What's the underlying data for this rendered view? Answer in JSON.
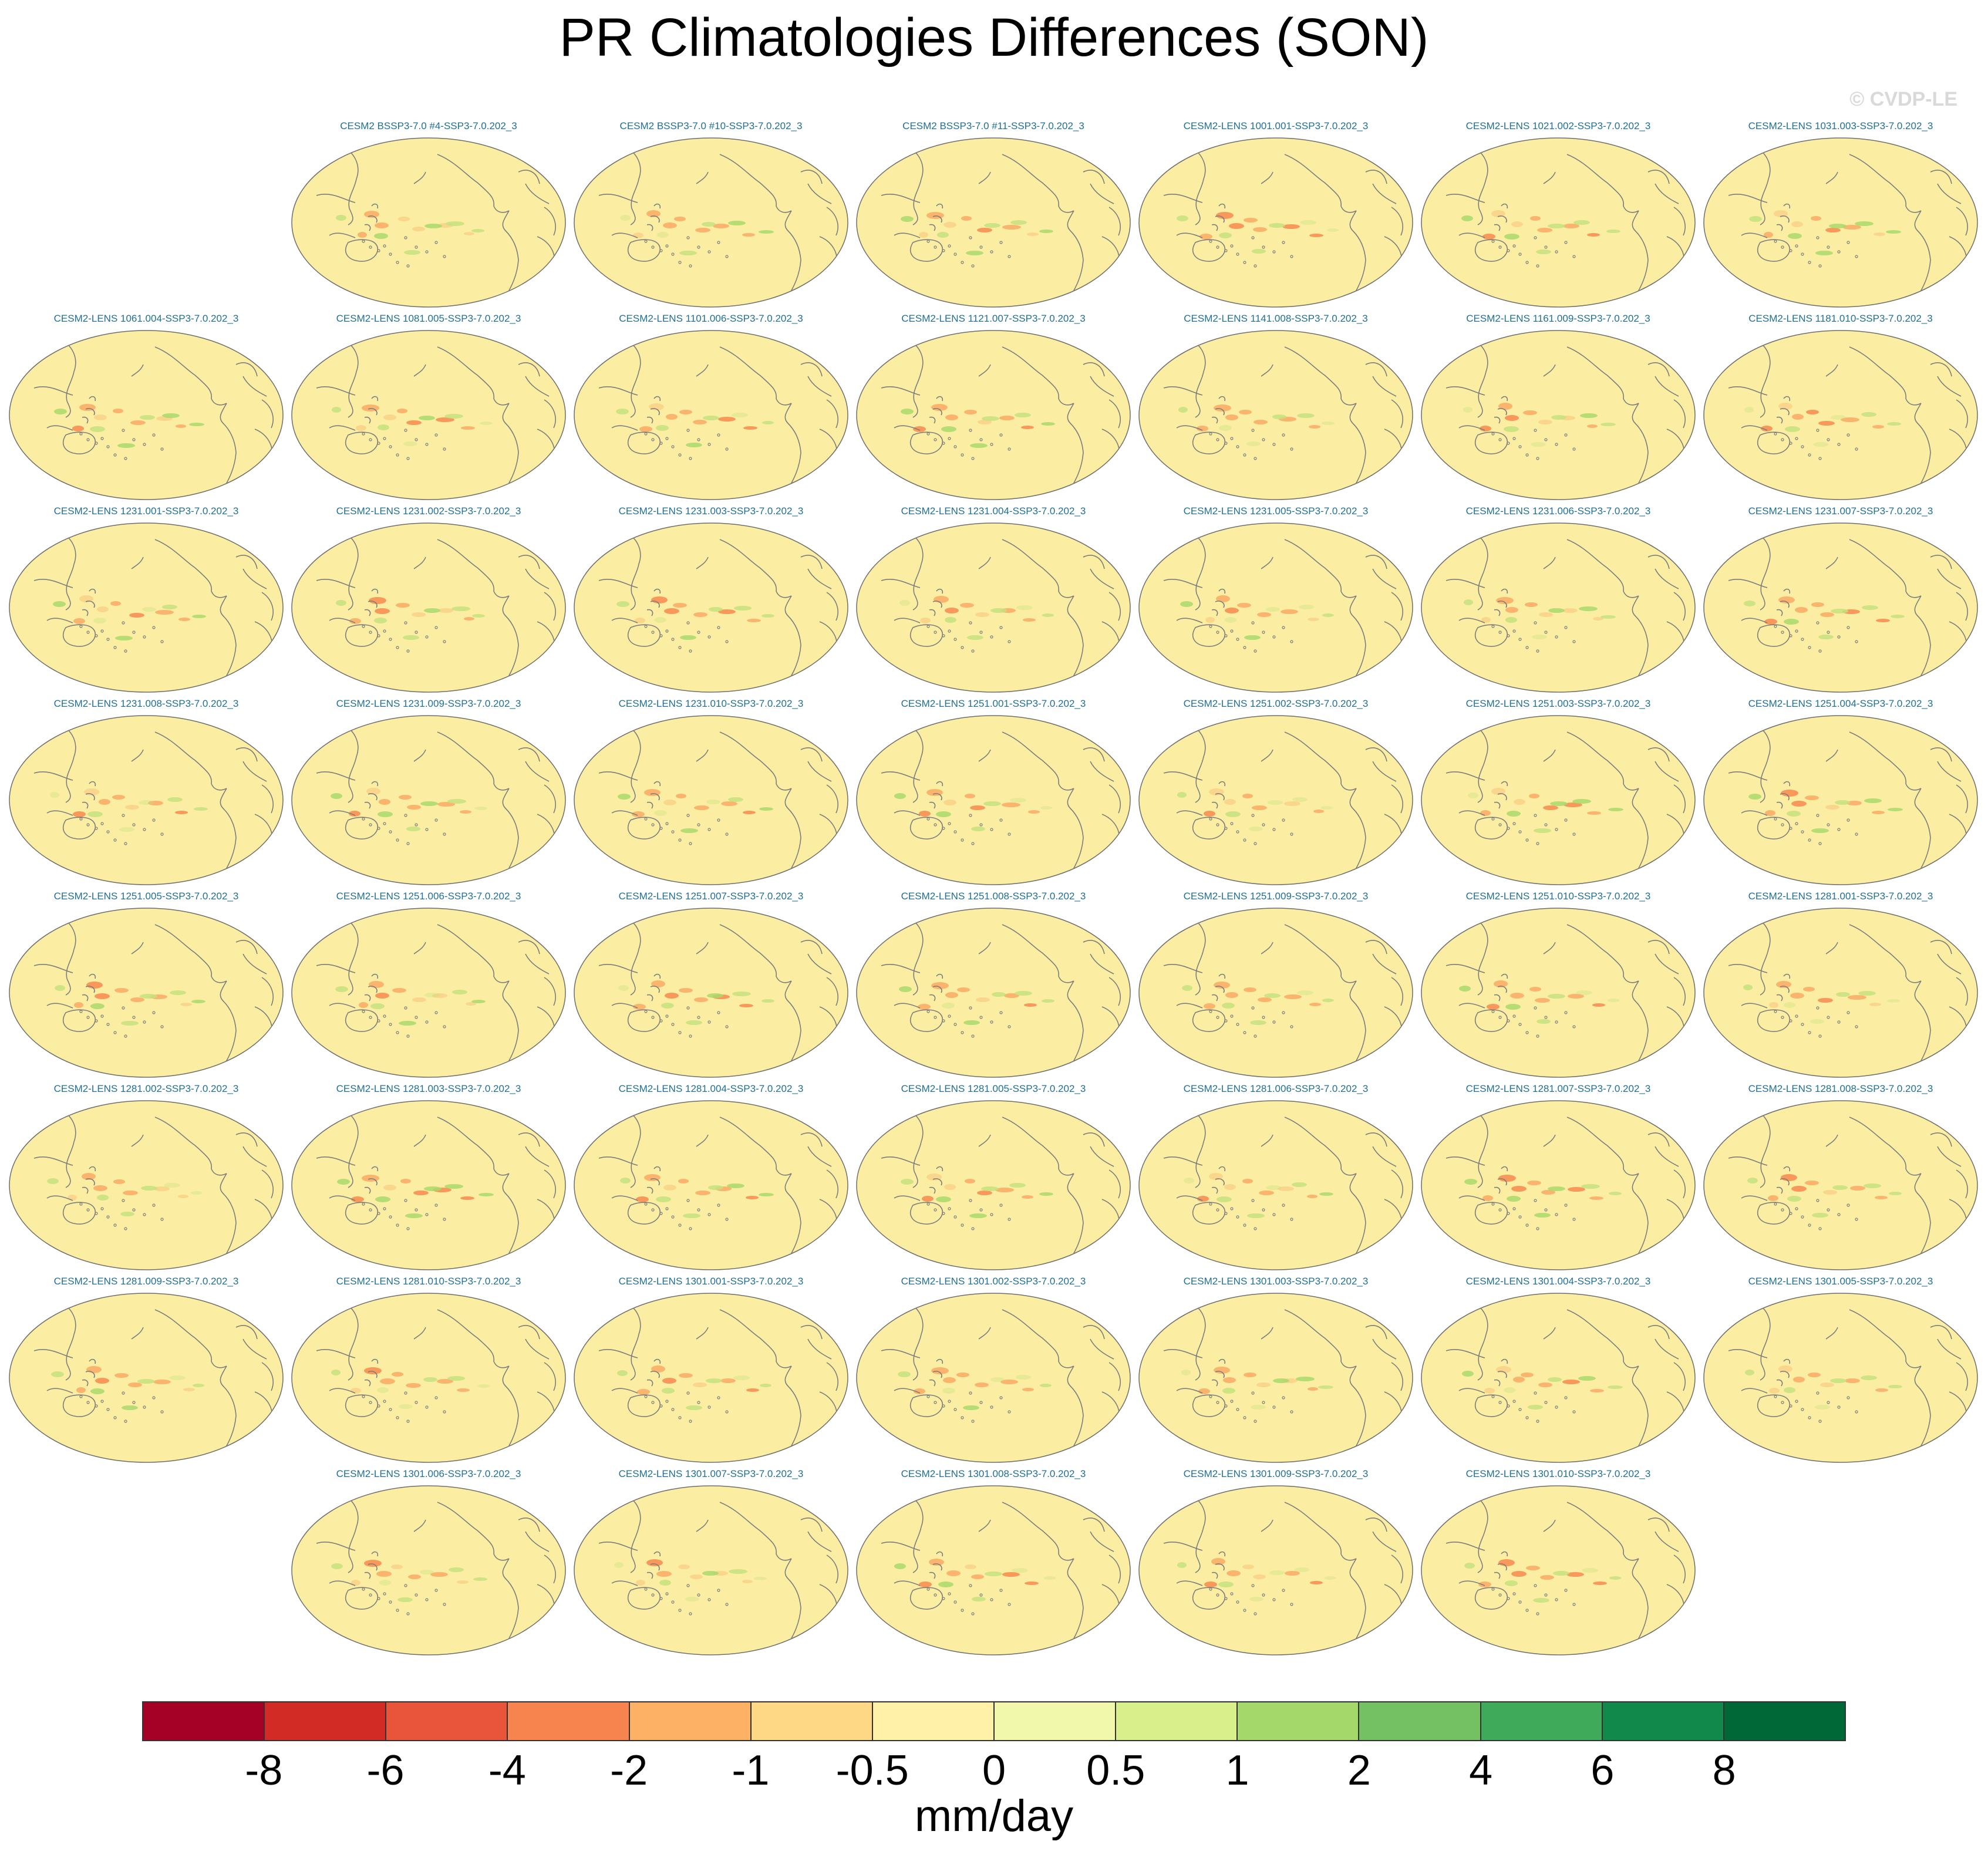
{
  "chart_data": {
    "type": "heatmap",
    "title": "PR Climatologies Differences (SON)",
    "watermark": "© CVDP-LE",
    "projection": "Robinson (Pacific-centered)",
    "panel_rows": [
      [
        "CESM2 BSSP3-7.0 #4-SSP3-7.0.202_3",
        "CESM2 BSSP3-7.0 #10-SSP3-7.0.202_3",
        "CESM2 BSSP3-7.0 #11-SSP3-7.0.202_3",
        "CESM2-LENS 1001.001-SSP3-7.0.202_3",
        "CESM2-LENS 1021.002-SSP3-7.0.202_3",
        "CESM2-LENS 1031.003-SSP3-7.0.202_3"
      ],
      [
        "CESM2-LENS 1061.004-SSP3-7.0.202_3",
        "CESM2-LENS 1081.005-SSP3-7.0.202_3",
        "CESM2-LENS 1101.006-SSP3-7.0.202_3",
        "CESM2-LENS 1121.007-SSP3-7.0.202_3",
        "CESM2-LENS 1141.008-SSP3-7.0.202_3",
        "CESM2-LENS 1161.009-SSP3-7.0.202_3",
        "CESM2-LENS 1181.010-SSP3-7.0.202_3"
      ],
      [
        "CESM2-LENS 1231.001-SSP3-7.0.202_3",
        "CESM2-LENS 1231.002-SSP3-7.0.202_3",
        "CESM2-LENS 1231.003-SSP3-7.0.202_3",
        "CESM2-LENS 1231.004-SSP3-7.0.202_3",
        "CESM2-LENS 1231.005-SSP3-7.0.202_3",
        "CESM2-LENS 1231.006-SSP3-7.0.202_3",
        "CESM2-LENS 1231.007-SSP3-7.0.202_3"
      ],
      [
        "CESM2-LENS 1231.008-SSP3-7.0.202_3",
        "CESM2-LENS 1231.009-SSP3-7.0.202_3",
        "CESM2-LENS 1231.010-SSP3-7.0.202_3",
        "CESM2-LENS 1251.001-SSP3-7.0.202_3",
        "CESM2-LENS 1251.002-SSP3-7.0.202_3",
        "CESM2-LENS 1251.003-SSP3-7.0.202_3",
        "CESM2-LENS 1251.004-SSP3-7.0.202_3"
      ],
      [
        "CESM2-LENS 1251.005-SSP3-7.0.202_3",
        "CESM2-LENS 1251.006-SSP3-7.0.202_3",
        "CESM2-LENS 1251.007-SSP3-7.0.202_3",
        "CESM2-LENS 1251.008-SSP3-7.0.202_3",
        "CESM2-LENS 1251.009-SSP3-7.0.202_3",
        "CESM2-LENS 1251.010-SSP3-7.0.202_3",
        "CESM2-LENS 1281.001-SSP3-7.0.202_3"
      ],
      [
        "CESM2-LENS 1281.002-SSP3-7.0.202_3",
        "CESM2-LENS 1281.003-SSP3-7.0.202_3",
        "CESM2-LENS 1281.004-SSP3-7.0.202_3",
        "CESM2-LENS 1281.005-SSP3-7.0.202_3",
        "CESM2-LENS 1281.006-SSP3-7.0.202_3",
        "CESM2-LENS 1281.007-SSP3-7.0.202_3",
        "CESM2-LENS 1281.008-SSP3-7.0.202_3"
      ],
      [
        "CESM2-LENS 1281.009-SSP3-7.0.202_3",
        "CESM2-LENS 1281.010-SSP3-7.0.202_3",
        "CESM2-LENS 1301.001-SSP3-7.0.202_3",
        "CESM2-LENS 1301.002-SSP3-7.0.202_3",
        "CESM2-LENS 1301.003-SSP3-7.0.202_3",
        "CESM2-LENS 1301.004-SSP3-7.0.202_3",
        "CESM2-LENS 1301.005-SSP3-7.0.202_3"
      ],
      [
        "CESM2-LENS 1301.006-SSP3-7.0.202_3",
        "CESM2-LENS 1301.007-SSP3-7.0.202_3",
        "CESM2-LENS 1301.008-SSP3-7.0.202_3",
        "CESM2-LENS 1301.009-SSP3-7.0.202_3",
        "CESM2-LENS 1301.010-SSP3-7.0.202_3"
      ]
    ],
    "row_start_column": [
      1,
      0,
      0,
      0,
      0,
      0,
      0,
      1
    ],
    "colorbar": {
      "tick_labels": [
        "-8",
        "-6",
        "-4",
        "-2",
        "-1",
        "-0.5",
        "0",
        "0.5",
        "1",
        "2",
        "4",
        "6",
        "8"
      ],
      "colors": [
        "#a50026",
        "#d22b26",
        "#e8553a",
        "#f7844e",
        "#fdb164",
        "#fed884",
        "#fff2a8",
        "#f1f8ac",
        "#d9ef8b",
        "#a5d86a",
        "#74c164",
        "#3faa59",
        "#10894a",
        "#006837"
      ],
      "units": "mm/day"
    },
    "map_colors": {
      "background": "#fbeea2",
      "coastline": "#7d7d7d",
      "dry_anomaly": "#f9a964",
      "wet_anomaly": "#c6e07e"
    }
  }
}
